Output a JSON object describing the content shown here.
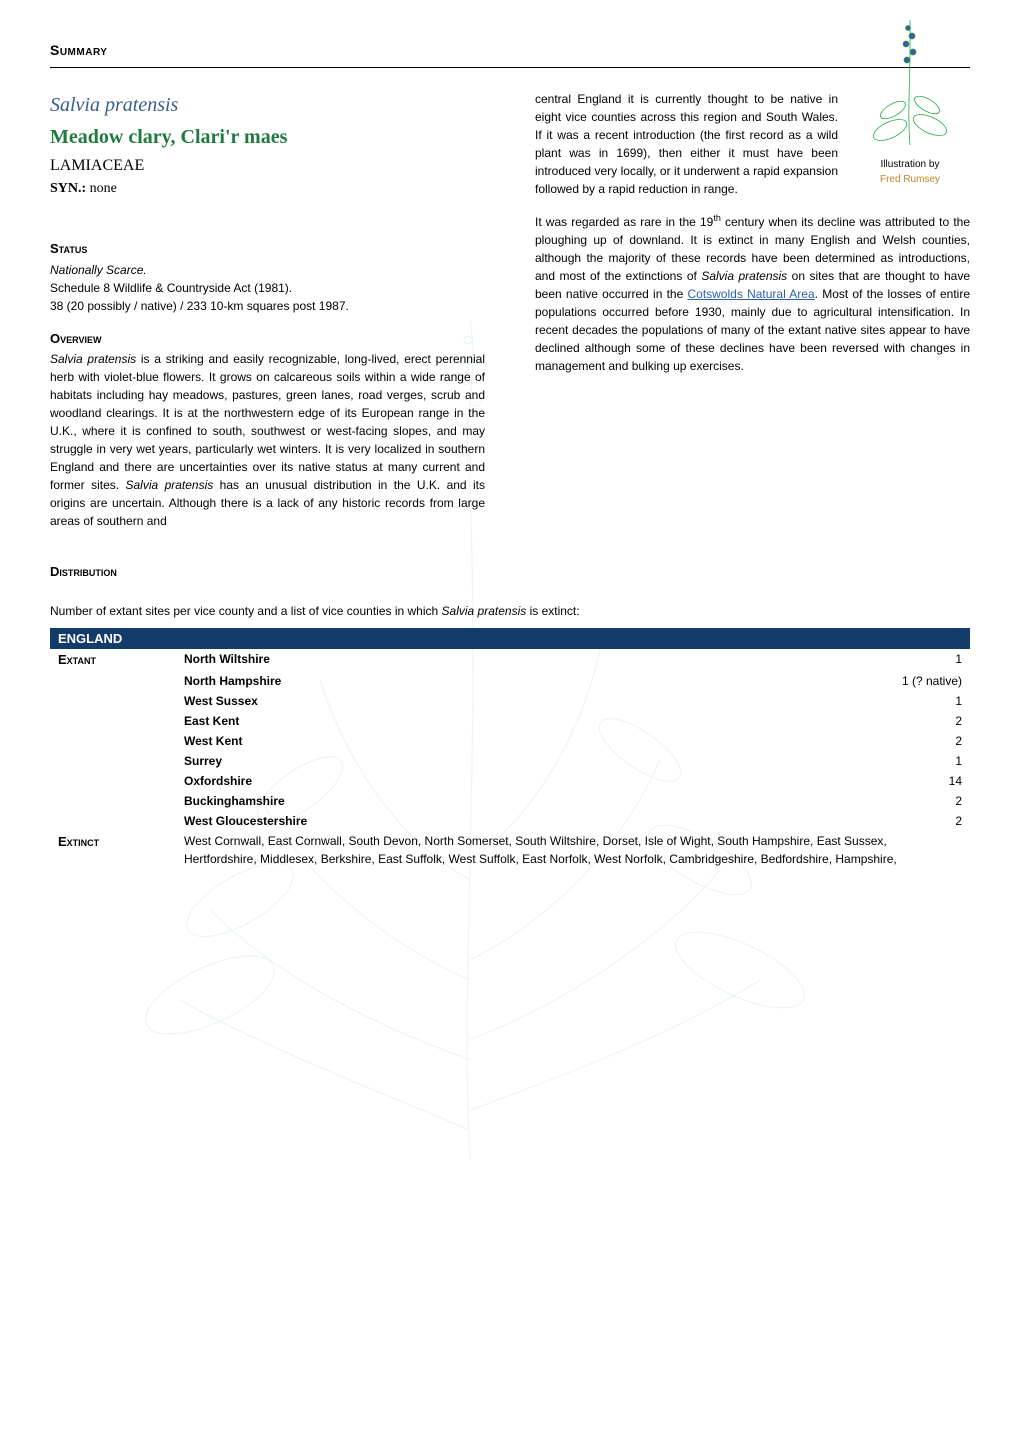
{
  "header": {
    "summary": "Summary"
  },
  "title": {
    "latin": "Salvia pratensis",
    "common": "Meadow clary, Clari'r maes",
    "family": "LAMIACEAE",
    "syn_label": "SYN.:",
    "syn_value": "none"
  },
  "illustration": {
    "caption_prefix": "Illustration by",
    "author": "Fred Rumsey"
  },
  "status": {
    "heading": "Status",
    "rarity": "Nationally Scarce.",
    "schedule": "Schedule 8 Wildlife & Countryside Act (1981).",
    "squares": "38 (20 possibly / native) / 233 10-km squares post 1987."
  },
  "overview": {
    "heading": "Overview",
    "p1a": "Salvia pratensis",
    "p1b": " is a striking and easily recognizable, long-lived, erect perennial herb with violet-blue flowers. It grows on calcareous soils within a wide range of habitats including hay meadows, pastures, green lanes, road verges, scrub and woodland clearings. It is at the northwestern edge of its European range in the U.K., where it is confined to south, southwest or west-facing slopes, and may struggle in very wet years, particularly wet winters. It is very localized in southern England and there are uncertainties over its native status at many current and former sites. ",
    "p1c": "Salvia pratensis",
    "p1d": " has an unusual distribution in the U.K. and its origins are uncertain. Although there is a lack of any historic records from large areas of southern and central England it is currently thought to be native in eight vice counties across this region and South Wales. If it was a recent introduction (the first record as a wild plant was in 1699), then either it must have been introduced very locally, or it underwent a rapid expansion followed by a rapid reduction in range.",
    "p2a": "It was regarded as rare in the 19",
    "p2sup": "th",
    "p2b": " century when its decline was attributed to the ploughing up of downland. It is extinct in many English and Welsh counties, although the majority of these records have been determined as introductions, and most of the extinctions of ",
    "p2c": "Salvia pratensis",
    "p2d": " on sites that are thought to have been native occurred in the ",
    "p2link": "Cotswolds Natural Area",
    "p2e": ". Most of the losses of entire populations occurred before 1930, mainly due to agricultural intensification. In recent decades the populations of many of the extant native sites appear to have declined although some of these declines have been reversed with changes in management and bulking up exercises."
  },
  "distribution": {
    "heading": "Distribution",
    "intro_a": "Number of extant sites per vice county and a list of vice counties in which ",
    "intro_b": "Salvia pratensis",
    "intro_c": " is extinct:",
    "region": "ENGLAND",
    "extant_label": "Extant",
    "extinct_label": "Extinct",
    "counties": [
      {
        "name": "North Wiltshire",
        "count": "1"
      },
      {
        "name": "North Hampshire",
        "count": "1 (? native)"
      },
      {
        "name": "West Sussex",
        "count": "1"
      },
      {
        "name": "East Kent",
        "count": "2"
      },
      {
        "name": "West Kent",
        "count": "2"
      },
      {
        "name": "Surrey",
        "count": "1"
      },
      {
        "name": "Oxfordshire",
        "count": "14"
      },
      {
        "name": "Buckinghamshire",
        "count": "2"
      },
      {
        "name": "West Gloucestershire",
        "count": "2"
      }
    ],
    "extinct_text": "West Cornwall, East Cornwall, South Devon, North Somerset, South Wiltshire, Dorset, Isle of Wight, South Hampshire, East Sussex, Hertfordshire, Middlesex, Berkshire, East Suffolk, West Suffolk, East Norfolk, West Norfolk, Cambridgeshire, Bedfordshire, Hampshire,"
  },
  "colors": {
    "latin": "#365f8f",
    "common": "#1f7a3d",
    "table_header_bg": "#133c6b",
    "link": "#2a5fa8",
    "illus_name": "#b82"
  }
}
